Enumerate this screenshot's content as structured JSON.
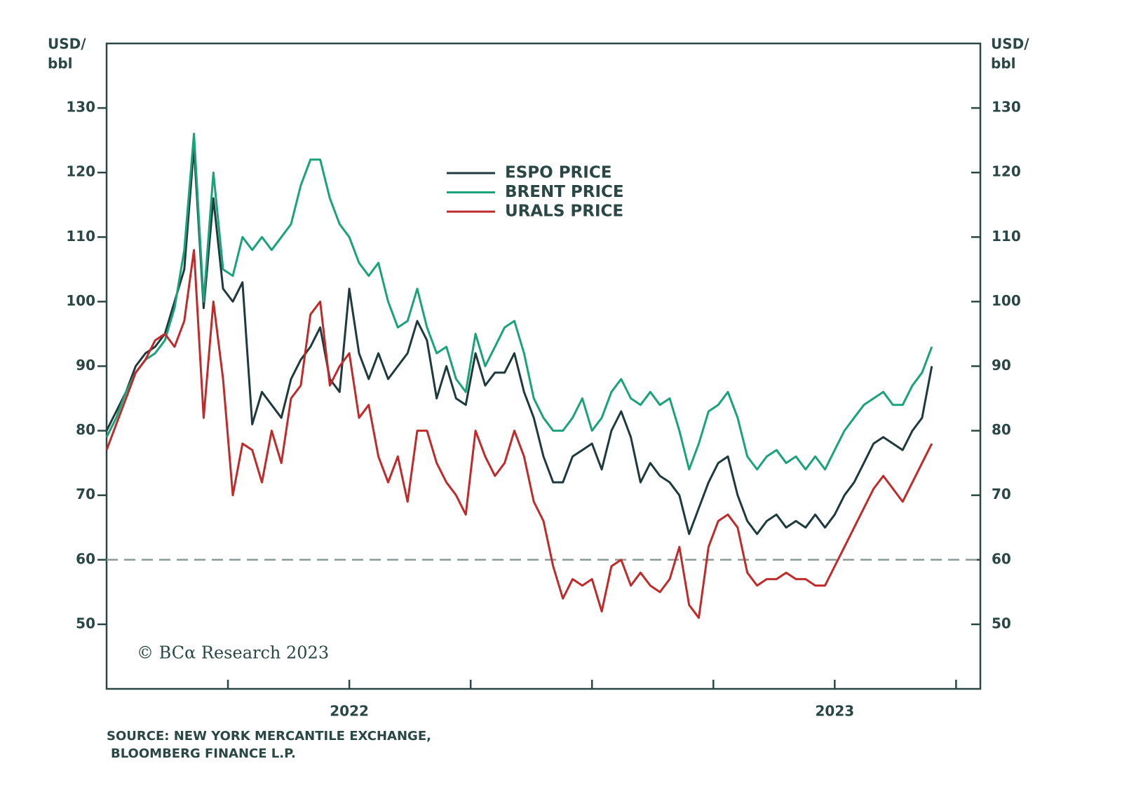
{
  "chart_data": {
    "type": "line",
    "y_label": [
      "USD/",
      "bbl"
    ],
    "y2_label": [
      "USD/",
      "bbl"
    ],
    "credit": "© BCα Research 2023",
    "source": [
      "SOURCE: NEW YORK MERCANTILE EXCHANGE,",
      "BLOOMBERG FINANCE L.P."
    ],
    "x": [
      2022,
      2022.02,
      2022.04,
      2022.06,
      2022.08,
      2022.1,
      2022.12,
      2022.14,
      2022.16,
      2022.18,
      2022.2,
      2022.22,
      2022.24,
      2022.26,
      2022.28,
      2022.3,
      2022.32,
      2022.34,
      2022.36,
      2022.38,
      2022.4,
      2022.42,
      2022.44,
      2022.46,
      2022.48,
      2022.5,
      2022.52,
      2022.54,
      2022.56,
      2022.58,
      2022.6,
      2022.62,
      2022.64,
      2022.66,
      2022.68,
      2022.7,
      2022.72,
      2022.74,
      2022.76,
      2022.78,
      2022.8,
      2022.82,
      2022.84,
      2022.86,
      2022.88,
      2022.9,
      2022.92,
      2022.94,
      2022.96,
      2022.98,
      2023,
      2023.02,
      2023.04,
      2023.06,
      2023.08,
      2023.1,
      2023.12,
      2023.14,
      2023.16,
      2023.18,
      2023.2,
      2023.22,
      2023.24,
      2023.26,
      2023.28,
      2023.3,
      2023.32,
      2023.34,
      2023.36,
      2023.38,
      2023.4,
      2023.42,
      2023.44,
      2023.46,
      2023.48,
      2023.5,
      2023.52,
      2023.54,
      2023.56,
      2023.58,
      2023.6,
      2023.62,
      2023.64,
      2023.66,
      2023.68,
      2023.7
    ],
    "series": [
      {
        "name": "ESPO PRICE",
        "color": "#1f3a3d",
        "values": [
          80,
          83,
          86,
          90,
          92,
          93,
          95,
          100,
          105,
          124,
          99,
          116,
          102,
          100,
          103,
          81,
          86,
          84,
          82,
          88,
          91,
          93,
          96,
          88,
          86,
          102,
          92,
          88,
          92,
          88,
          90,
          92,
          97,
          94,
          85,
          90,
          85,
          84,
          92,
          87,
          89,
          89,
          92,
          86,
          82,
          76,
          72,
          72,
          76,
          77,
          78,
          74,
          80,
          83,
          79,
          72,
          75,
          73,
          72,
          70,
          64,
          68,
          72,
          75,
          76,
          70,
          66,
          64,
          66,
          67,
          65,
          66,
          65,
          67,
          65,
          67,
          70,
          72,
          75,
          78,
          79,
          78,
          77,
          80,
          82,
          90
        ]
      },
      {
        "name": "BRENT PRICE",
        "color": "#1aa37a",
        "values": [
          79,
          82,
          86,
          89,
          91,
          92,
          94,
          99,
          108,
          126,
          100,
          120,
          105,
          104,
          110,
          108,
          110,
          108,
          110,
          112,
          118,
          122,
          122,
          116,
          112,
          110,
          106,
          104,
          106,
          100,
          96,
          97,
          102,
          96,
          92,
          93,
          88,
          86,
          95,
          90,
          93,
          96,
          97,
          92,
          85,
          82,
          80,
          80,
          82,
          85,
          80,
          82,
          86,
          88,
          85,
          84,
          86,
          84,
          85,
          80,
          74,
          78,
          83,
          84,
          86,
          82,
          76,
          74,
          76,
          77,
          75,
          76,
          74,
          76,
          74,
          77,
          80,
          82,
          84,
          85,
          86,
          84,
          84,
          87,
          89,
          93
        ]
      },
      {
        "name": "URALS PRICE",
        "color": "#c02a2a",
        "values": [
          77,
          81,
          85,
          89,
          91,
          94,
          95,
          93,
          97,
          108,
          82,
          100,
          88,
          70,
          78,
          77,
          72,
          80,
          75,
          85,
          87,
          98,
          100,
          87,
          90,
          92,
          82,
          84,
          76,
          72,
          76,
          69,
          80,
          80,
          75,
          72,
          70,
          67,
          80,
          76,
          73,
          75,
          80,
          76,
          69,
          66,
          59,
          54,
          57,
          56,
          57,
          52,
          59,
          60,
          56,
          58,
          56,
          55,
          57,
          62,
          53,
          51,
          62,
          66,
          67,
          65,
          58,
          56,
          57,
          57,
          58,
          57,
          57,
          56,
          56,
          59,
          62,
          65,
          68,
          71,
          73,
          71,
          69,
          72,
          75,
          78
        ]
      }
    ],
    "xlim": [
      2022,
      2023.8
    ],
    "xticks": [
      {
        "value": 2022.5,
        "label": "2022"
      },
      {
        "value": 2023.5,
        "label": "2023"
      }
    ],
    "x_minor_ticks": [
      2022.25,
      2022.5,
      2022.75,
      2023,
      2023.25,
      2023.5,
      2023.75
    ],
    "ylim": [
      40,
      140
    ],
    "yticks": [
      50,
      60,
      70,
      80,
      90,
      100,
      110,
      120,
      130
    ],
    "y2lim": [
      40,
      140
    ],
    "y2ticks": [
      50,
      60,
      70,
      80,
      90,
      100,
      110,
      120,
      130
    ],
    "reference_line": 60,
    "legend": "upper center"
  }
}
